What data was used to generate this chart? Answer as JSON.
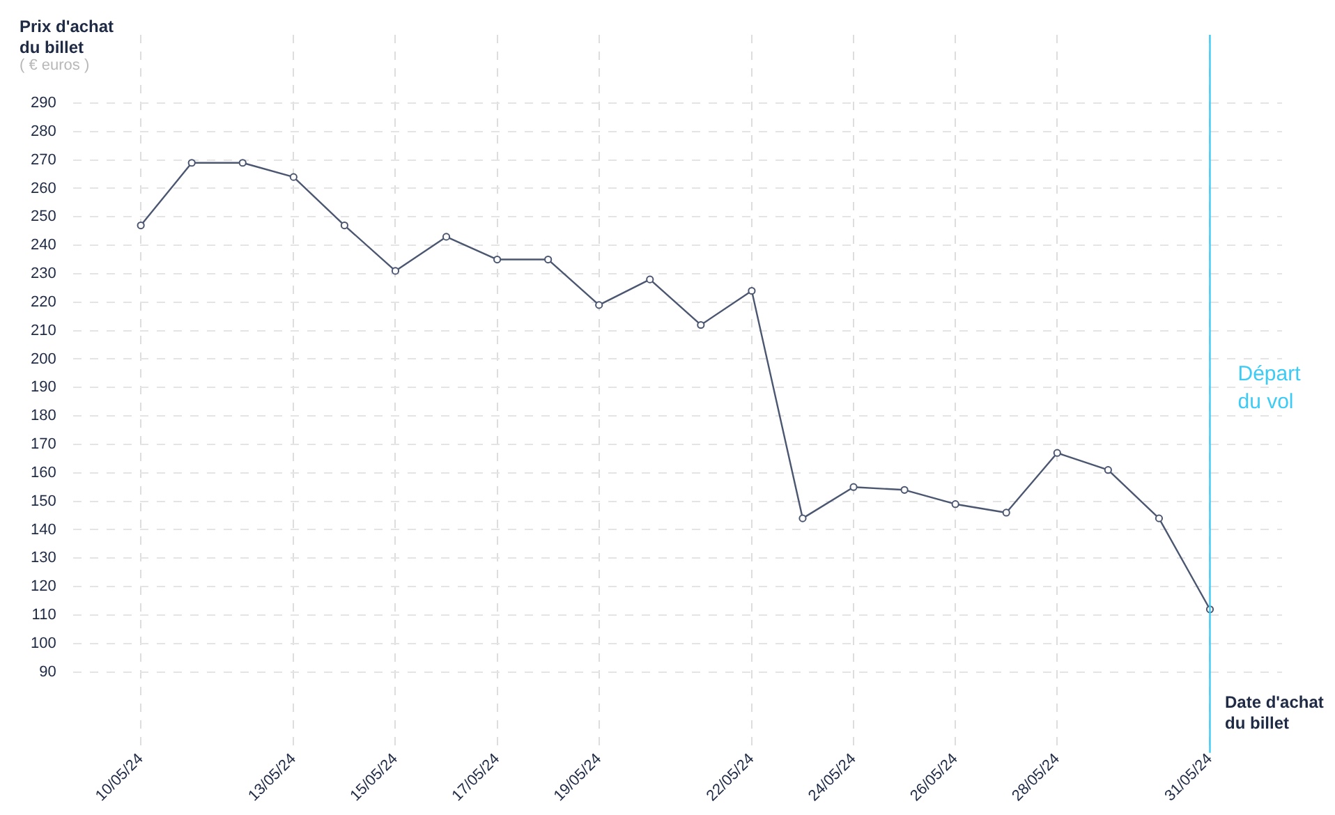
{
  "chart_data": {
    "type": "line",
    "ylabel": "Prix d'achat du billet",
    "xlabel": "Date d'achat du billet",
    "annotations": [
      "( € euros )"
    ],
    "x": [
      "--05-10",
      "--05-11",
      "--05-12",
      "--05-13",
      "--05-14",
      "--05-15",
      "--05-16",
      "--05-17",
      "--05-18",
      "--05-19",
      "--05-20",
      "--05-21",
      "--05-22",
      "--05-23",
      "--05-24",
      "--05-25",
      "--05-26",
      "--05-27",
      "--05-28",
      "--05-29",
      "--05-30",
      "--05-31"
    ],
    "series": [
      {
        "color": "#4b5670",
        "values": [
          247,
          269,
          269,
          264,
          247,
          231,
          243,
          235,
          235,
          219,
          228,
          212,
          224,
          144,
          155,
          154,
          149,
          146,
          167,
          161,
          144,
          112
        ]
      }
    ],
    "xlim": [
      "--05-08T16:00",
      "--06-01T10:00"
    ],
    "xticks": [
      {
        "value": "--05-10",
        "label": "10/05/24"
      },
      {
        "value": "--05-13",
        "label": "13/05/24"
      },
      {
        "value": "--05-15",
        "label": "15/05/24"
      },
      {
        "value": "--05-17",
        "label": "17/05/24"
      },
      {
        "value": "--05-19",
        "label": "19/05/24"
      },
      {
        "value": "--05-22",
        "label": "22/05/24"
      },
      {
        "value": "--05-24",
        "label": "24/05/24"
      },
      {
        "value": "--05-26",
        "label": "26/05/24"
      },
      {
        "value": "--05-28",
        "label": "28/05/24"
      },
      {
        "value": "--05-31",
        "label": "31/05/24"
      }
    ],
    "ylim": [
      64,
      314
    ],
    "yticks": [
      90,
      100,
      110,
      120,
      130,
      140,
      150,
      160,
      170,
      180,
      190,
      200,
      210,
      220,
      230,
      240,
      250,
      260,
      270,
      280,
      290
    ],
    "grid": true,
    "legend": false,
    "marker": "circle",
    "line_style": "solid",
    "ref_lines": [
      {
        "axis": "x",
        "value": "--05-31",
        "label": "Départ du vol",
        "color": "#3ccbf4"
      }
    ]
  }
}
